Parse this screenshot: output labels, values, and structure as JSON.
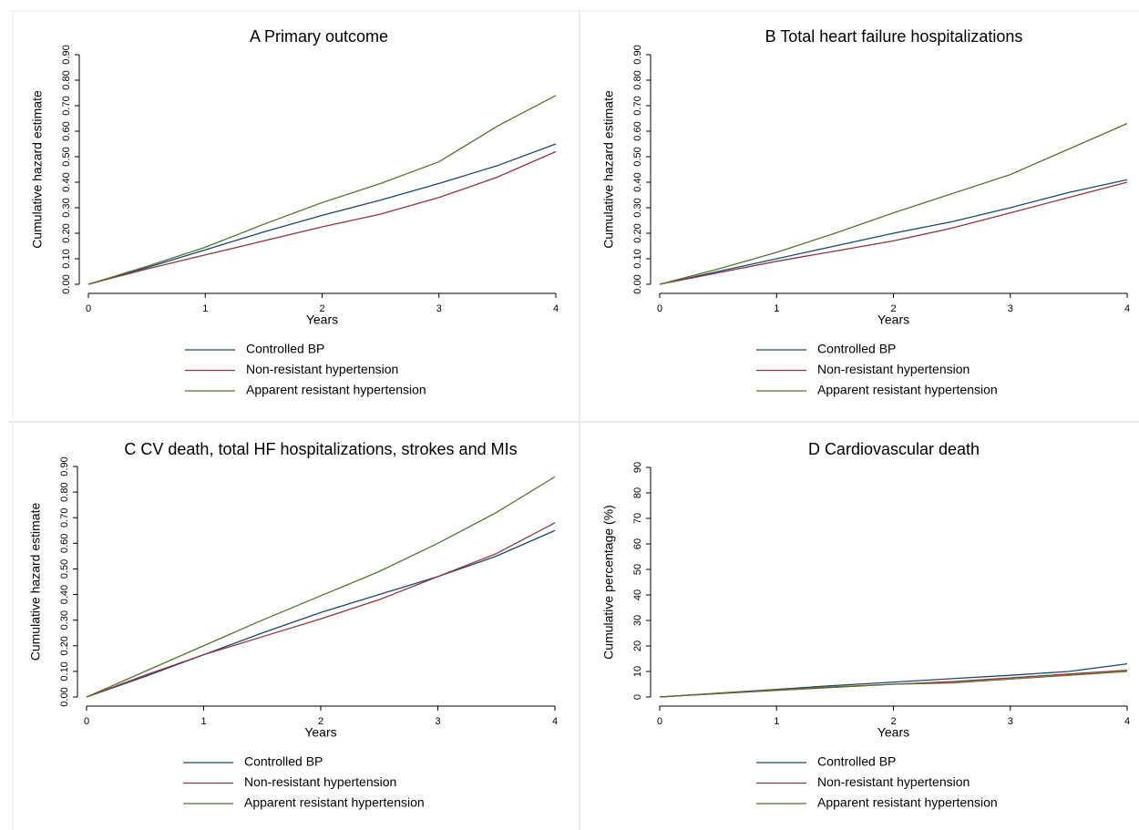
{
  "chart_data": [
    {
      "type": "line",
      "title": "A  Primary outcome",
      "x_label": "Years",
      "y_label": "Cumulative hazard estimate",
      "x": [
        0,
        0.5,
        1,
        1.5,
        2,
        2.5,
        3,
        3.5,
        4
      ],
      "xlim": [
        0,
        4
      ],
      "xticks": [
        0,
        1,
        2,
        3,
        4
      ],
      "ylim": [
        0,
        0.9
      ],
      "yticks": [
        {
          "value": 0,
          "label": "0.00"
        },
        {
          "value": 0.1,
          "label": "0.10"
        },
        {
          "value": 0.2,
          "label": "0.20"
        },
        {
          "value": 0.3,
          "label": "0.30"
        },
        {
          "value": 0.4,
          "label": "0.40"
        },
        {
          "value": 0.5,
          "label": "0.50"
        },
        {
          "value": 0.6,
          "label": "0.60"
        },
        {
          "value": 0.7,
          "label": "0.70"
        },
        {
          "value": 0.8,
          "label": "0.80"
        },
        {
          "value": 0.9,
          "label": "0.90"
        }
      ],
      "series": [
        {
          "name": "Controlled BP",
          "color": "#1a476f",
          "values": [
            0,
            0.065,
            0.135,
            0.205,
            0.27,
            0.33,
            0.395,
            0.465,
            0.55
          ]
        },
        {
          "name": "Non-resistant hypertension",
          "color": "#90353b",
          "values": [
            0,
            0.06,
            0.115,
            0.17,
            0.225,
            0.275,
            0.34,
            0.42,
            0.52
          ]
        },
        {
          "name": "Apparent resistant hypertension",
          "color": "#55752f",
          "values": [
            0,
            0.07,
            0.145,
            0.235,
            0.32,
            0.395,
            0.48,
            0.62,
            0.74
          ]
        }
      ]
    },
    {
      "type": "line",
      "title": "B  Total heart failure hospitalizations",
      "x_label": "Years",
      "y_label": "Cumulative hazard estimate",
      "x": [
        0,
        0.5,
        1,
        1.5,
        2,
        2.5,
        3,
        3.5,
        4
      ],
      "xlim": [
        0,
        4
      ],
      "xticks": [
        0,
        1,
        2,
        3,
        4
      ],
      "ylim": [
        0,
        0.9
      ],
      "yticks": [
        {
          "value": 0,
          "label": "0.00"
        },
        {
          "value": 0.1,
          "label": "0.10"
        },
        {
          "value": 0.2,
          "label": "0.20"
        },
        {
          "value": 0.3,
          "label": "0.30"
        },
        {
          "value": 0.4,
          "label": "0.40"
        },
        {
          "value": 0.5,
          "label": "0.50"
        },
        {
          "value": 0.6,
          "label": "0.60"
        },
        {
          "value": 0.7,
          "label": "0.70"
        },
        {
          "value": 0.8,
          "label": "0.80"
        },
        {
          "value": 0.9,
          "label": "0.90"
        }
      ],
      "series": [
        {
          "name": "Controlled BP",
          "color": "#1a476f",
          "values": [
            0,
            0.05,
            0.1,
            0.15,
            0.2,
            0.245,
            0.3,
            0.36,
            0.41
          ]
        },
        {
          "name": "Non-resistant hypertension",
          "color": "#90353b",
          "values": [
            0,
            0.045,
            0.09,
            0.13,
            0.17,
            0.22,
            0.28,
            0.34,
            0.4
          ]
        },
        {
          "name": "Apparent resistant hypertension",
          "color": "#55752f",
          "values": [
            0,
            0.06,
            0.125,
            0.2,
            0.28,
            0.355,
            0.43,
            0.53,
            0.63
          ]
        }
      ]
    },
    {
      "type": "line",
      "title": "C  CV death, total HF hospitalizations, strokes and MIs",
      "x_label": "Years",
      "y_label": "Cumulative hazard estimate",
      "x": [
        0,
        0.5,
        1,
        1.5,
        2,
        2.5,
        3,
        3.5,
        4
      ],
      "xlim": [
        0,
        4
      ],
      "xticks": [
        0,
        1,
        2,
        3,
        4
      ],
      "ylim": [
        0,
        0.9
      ],
      "yticks": [
        {
          "value": 0,
          "label": "0.00"
        },
        {
          "value": 0.1,
          "label": "0.10"
        },
        {
          "value": 0.2,
          "label": "0.20"
        },
        {
          "value": 0.3,
          "label": "0.30"
        },
        {
          "value": 0.4,
          "label": "0.40"
        },
        {
          "value": 0.5,
          "label": "0.50"
        },
        {
          "value": 0.6,
          "label": "0.60"
        },
        {
          "value": 0.7,
          "label": "0.70"
        },
        {
          "value": 0.8,
          "label": "0.80"
        },
        {
          "value": 0.9,
          "label": "0.90"
        }
      ],
      "series": [
        {
          "name": "Controlled BP",
          "color": "#1a476f",
          "values": [
            0,
            0.08,
            0.165,
            0.25,
            0.33,
            0.4,
            0.47,
            0.55,
            0.65
          ]
        },
        {
          "name": "Non-resistant hypertension",
          "color": "#90353b",
          "values": [
            0,
            0.085,
            0.165,
            0.235,
            0.305,
            0.38,
            0.47,
            0.56,
            0.68
          ]
        },
        {
          "name": "Apparent resistant hypertension",
          "color": "#55752f",
          "values": [
            0,
            0.1,
            0.2,
            0.3,
            0.395,
            0.49,
            0.6,
            0.72,
            0.86
          ]
        }
      ]
    },
    {
      "type": "line",
      "title": "D  Cardiovascular death",
      "x_label": "Years",
      "y_label": "Cumulative percentage (%)",
      "x": [
        0,
        0.5,
        1,
        1.5,
        2,
        2.5,
        3,
        3.5,
        4
      ],
      "xlim": [
        0,
        4
      ],
      "xticks": [
        0,
        1,
        2,
        3,
        4
      ],
      "ylim": [
        0,
        90
      ],
      "yticks": [
        0,
        10,
        20,
        30,
        40,
        50,
        60,
        70,
        80,
        90
      ],
      "series": [
        {
          "name": "Controlled BP",
          "color": "#1a476f",
          "values": [
            0,
            1.5,
            3,
            4.5,
            5.8,
            7.2,
            8.5,
            10,
            13
          ]
        },
        {
          "name": "Non-resistant hypertension",
          "color": "#90353b",
          "values": [
            0,
            1.3,
            2.6,
            3.8,
            5,
            6,
            7.5,
            9,
            10.5
          ]
        },
        {
          "name": "Apparent resistant hypertension",
          "color": "#55752f",
          "values": [
            0,
            1.4,
            2.8,
            4,
            5,
            5.5,
            7,
            8.5,
            10
          ]
        }
      ]
    }
  ]
}
